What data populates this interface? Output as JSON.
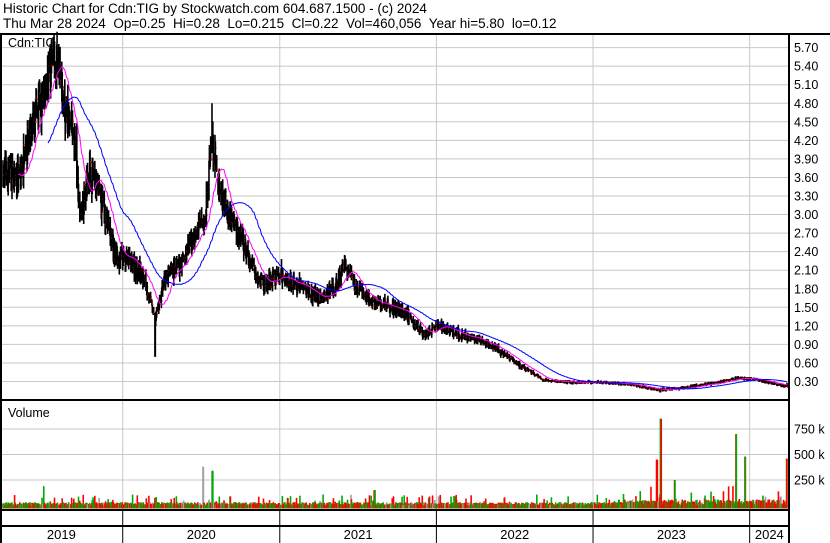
{
  "header": {
    "title": "Historic Chart for Cdn:TIG by Stockwatch.com 604.687.1500 - (c) 2024",
    "quote": "Thu Mar 28 2024  Op=0.25  Hi=0.28  Lo=0.215  Cl=0.22  Vol=460,056  Year hi=5.80  lo=0.12"
  },
  "chart_data": [
    {
      "type": "ohlc",
      "symbol_label": "Cdn:TIG",
      "x_range": [
        "2019-03-28",
        "2024-03-28"
      ],
      "ylim": [
        0.0,
        5.9
      ],
      "y_ticks": [
        "5.70",
        "5.40",
        "5.10",
        "4.80",
        "4.50",
        "4.20",
        "3.90",
        "3.60",
        "3.30",
        "3.00",
        "2.70",
        "2.40",
        "2.10",
        "1.80",
        "1.50",
        "1.20",
        "0.90",
        "0.60",
        "0.30"
      ],
      "x_tick_labels": [
        "2019",
        "2020",
        "2021",
        "2022",
        "2023",
        "2024"
      ],
      "grid": true,
      "colors": {
        "bar": "#000000",
        "close_tick": "#ff0000",
        "ma_short": "#ff00ff",
        "ma_long": "#0000ff",
        "grid": "#c8c8c8"
      },
      "close_trend": [
        [
          "2019-03-28",
          3.72
        ],
        [
          "2019-05-07",
          3.56
        ],
        [
          "2019-05-18",
          4.05
        ],
        [
          "2019-06-10",
          4.53
        ],
        [
          "2019-07-04",
          5.0
        ],
        [
          "2019-07-27",
          5.58
        ],
        [
          "2019-08-19",
          4.7
        ],
        [
          "2019-09-11",
          4.2
        ],
        [
          "2019-09-23",
          3.0
        ],
        [
          "2019-10-16",
          3.72
        ],
        [
          "2019-11-20",
          3.07
        ],
        [
          "2019-12-13",
          2.35
        ],
        [
          "2020-01-17",
          2.26
        ],
        [
          "2020-02-21",
          1.94
        ],
        [
          "2020-03-16",
          1.3
        ],
        [
          "2020-04-08",
          1.94
        ],
        [
          "2020-05-13",
          2.18
        ],
        [
          "2020-06-17",
          2.67
        ],
        [
          "2020-07-10",
          2.9
        ],
        [
          "2020-07-26",
          4.2
        ],
        [
          "2020-08-14",
          3.4
        ],
        [
          "2020-09-18",
          2.83
        ],
        [
          "2020-10-23",
          2.26
        ],
        [
          "2020-11-26",
          1.86
        ],
        [
          "2020-12-31",
          2.02
        ],
        [
          "2021-02-16",
          1.86
        ],
        [
          "2021-04-03",
          1.65
        ],
        [
          "2021-05-08",
          1.78
        ],
        [
          "2021-06-01",
          2.18
        ],
        [
          "2021-06-24",
          1.86
        ],
        [
          "2021-07-29",
          1.6
        ],
        [
          "2021-09-13",
          1.53
        ],
        [
          "2021-10-30",
          1.37
        ],
        [
          "2021-12-04",
          1.05
        ],
        [
          "2022-01-07",
          1.21
        ],
        [
          "2022-02-23",
          1.05
        ],
        [
          "2022-04-11",
          0.97
        ],
        [
          "2022-05-27",
          0.81
        ],
        [
          "2022-07-13",
          0.57
        ],
        [
          "2022-09-09",
          0.32
        ],
        [
          "2022-11-06",
          0.29
        ],
        [
          "2023-01-15",
          0.29
        ],
        [
          "2023-03-25",
          0.26
        ],
        [
          "2023-06-03",
          0.16
        ],
        [
          "2023-08-12",
          0.21
        ],
        [
          "2023-10-21",
          0.29
        ],
        [
          "2023-12-06",
          0.36
        ],
        [
          "2024-01-22",
          0.32
        ],
        [
          "2024-03-28",
          0.22
        ]
      ],
      "extremes": [
        [
          "2019-07-27",
          5.8
        ],
        [
          "2020-03-16",
          0.7
        ],
        [
          "2020-07-26",
          4.8
        ]
      ]
    },
    {
      "type": "bar",
      "title": "Volume",
      "ylim": [
        0,
        950000
      ],
      "y_ticks": [
        "750 k",
        "500 k",
        "250 k"
      ],
      "colors": {
        "up": "#00aa00",
        "down": "#ff0000",
        "flat": "#a0a0a0"
      },
      "spikes": [
        [
          "2019-06-30",
          190000
        ],
        [
          "2020-07-06",
          380000
        ],
        [
          "2020-07-28",
          340000
        ],
        [
          "2021-08-10",
          150000
        ],
        [
          "2023-06-08",
          850000
        ],
        [
          "2023-05-30",
          450000
        ],
        [
          "2023-07-10",
          250000
        ],
        [
          "2023-12-01",
          700000
        ],
        [
          "2023-12-22",
          480000
        ],
        [
          "2024-03-28",
          460056
        ]
      ]
    }
  ]
}
